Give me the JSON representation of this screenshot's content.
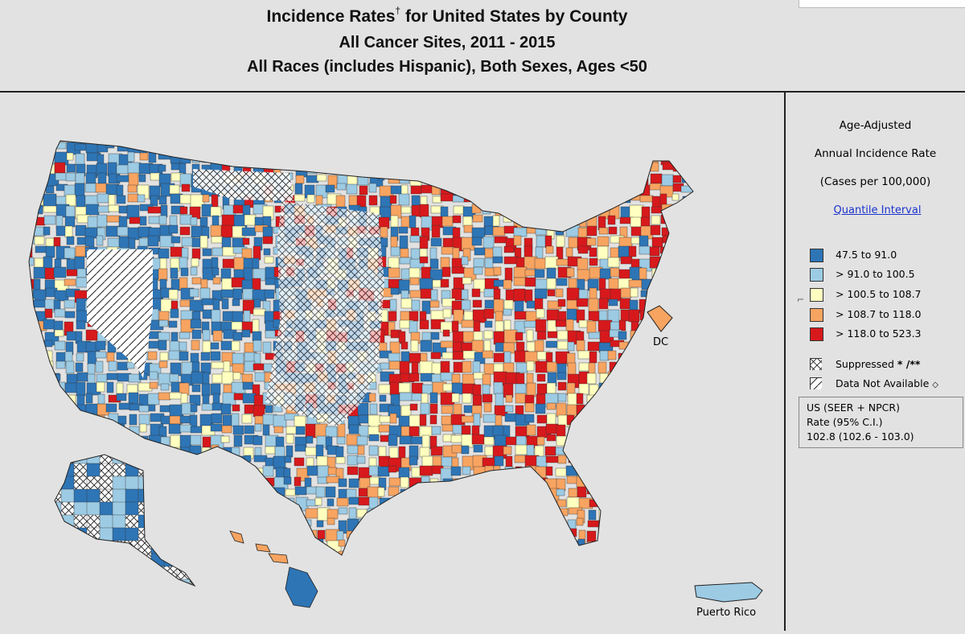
{
  "header": {
    "title_main": "Incidence Rates",
    "title_dagger": "†",
    "title_rest": " for United States by County",
    "subtitle1": "All Cancer Sites, 2011 - 2015",
    "subtitle2": "All Races (includes Hispanic), Both Sexes, Ages <50"
  },
  "legend": {
    "heading1": "Age-Adjusted",
    "heading2": "Annual Incidence Rate",
    "heading3": "(Cases per 100,000)",
    "link": "Quantile Interval",
    "classes": [
      {
        "label": "47.5  to  91.0",
        "color": "#2e75b6"
      },
      {
        "label": "> 91.0  to  100.5",
        "color": "#9dcbe4"
      },
      {
        "label": "> 100.5  to  108.7",
        "color": "#ffffc0"
      },
      {
        "label": "> 108.7  to  118.0",
        "color": "#f8a461"
      },
      {
        "label": "> 118.0  to  523.3",
        "color": "#d7191c"
      }
    ],
    "suppressed": "Suppressed",
    "suppressed_mark": "* /**",
    "not_available": "Data Not Available",
    "not_available_mark": "◇",
    "us_line1": "US (SEER + NPCR)",
    "us_line2": "Rate  (95% C.I.)",
    "us_line3": "102.8 (102.6 - 103.0)"
  },
  "map": {
    "dc_label": "DC",
    "pr_label": "Puerto Rico"
  }
}
